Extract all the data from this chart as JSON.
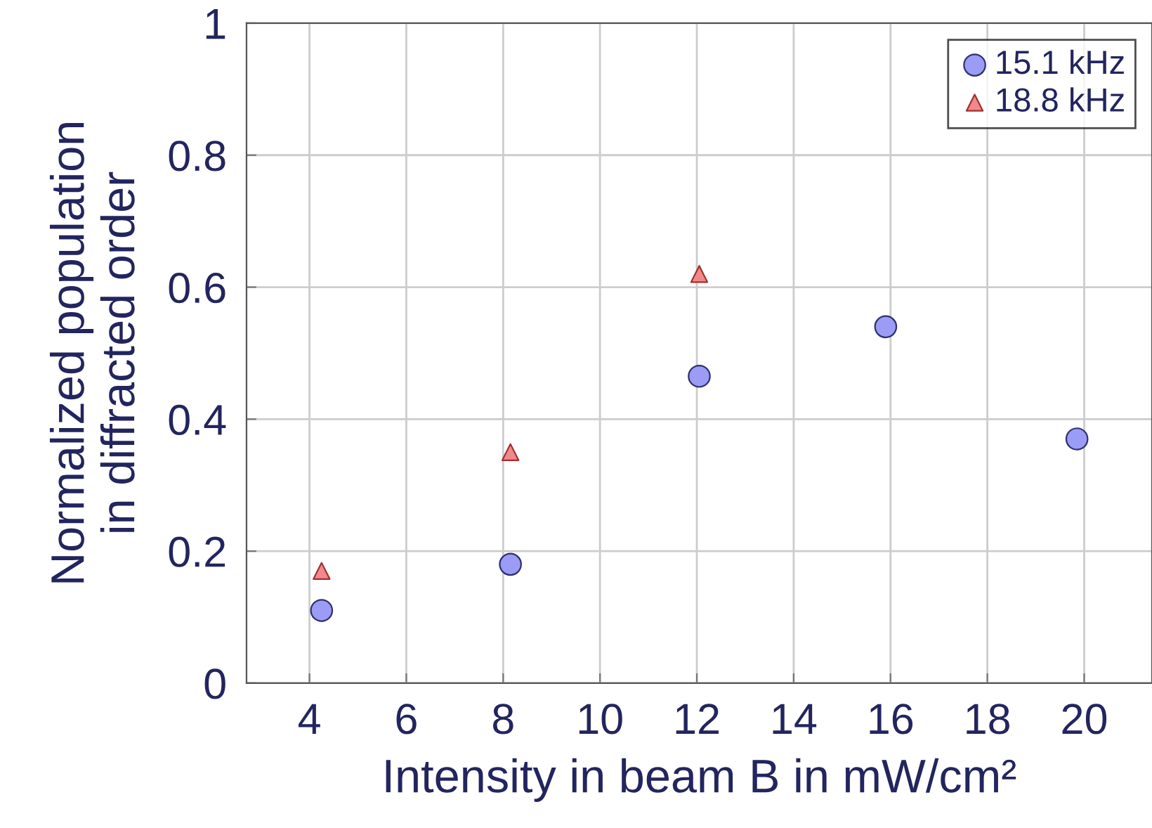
{
  "chart_data": {
    "type": "scatter",
    "xlabel": "Intensity in beam B in mW/cm²",
    "ylabel": "Normalized population\nin diffracted order",
    "xlim": [
      2.7,
      21.4
    ],
    "xticks": [
      4,
      6,
      8,
      10,
      12,
      14,
      16,
      18,
      20
    ],
    "ylim": [
      0,
      1
    ],
    "yticks": [
      0,
      0.2,
      0.4,
      0.6,
      0.8,
      1
    ],
    "grid": true,
    "legend": "top right",
    "series": [
      {
        "name": "15.1 kHz",
        "color": "#9a9cf5",
        "marker": "circle",
        "x": [
          4.25,
          8.15,
          12.05,
          15.9,
          19.85
        ],
        "values": [
          0.11,
          0.18,
          0.465,
          0.54,
          0.37
        ]
      },
      {
        "name": "18.8 kHz",
        "color": "#f08a8a",
        "marker": "triangle",
        "x": [
          4.25,
          8.15,
          12.05
        ],
        "values": [
          0.17,
          0.35,
          0.62
        ]
      }
    ]
  }
}
